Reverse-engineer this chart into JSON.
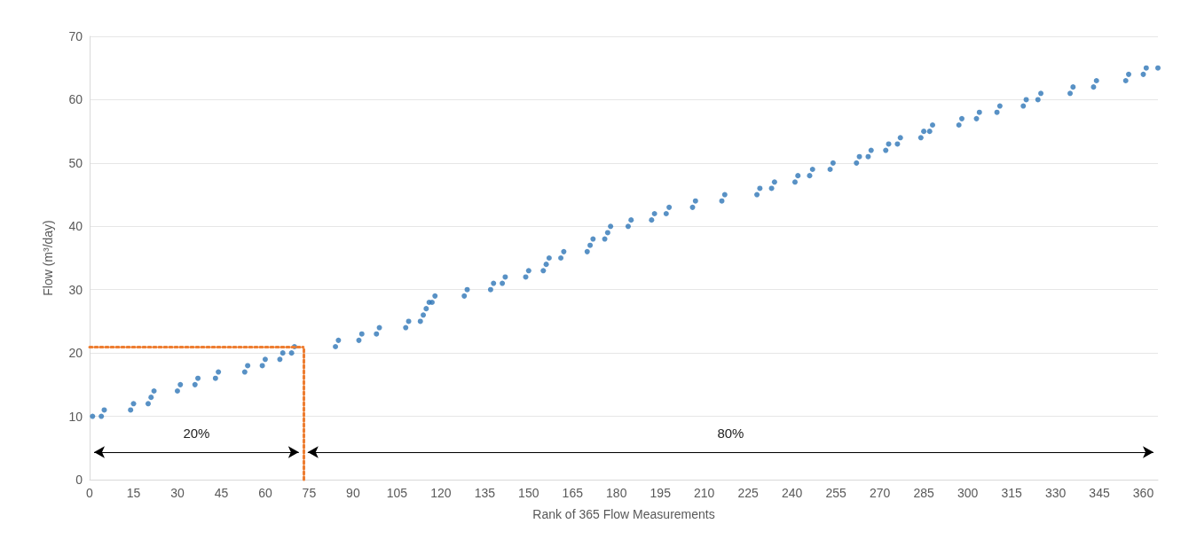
{
  "chart_data": {
    "type": "scatter",
    "xlabel": "Rank of 365 Flow Measurements",
    "ylabel": "Flow (m³/day)",
    "x": [
      1,
      4,
      5,
      14,
      15,
      20,
      21,
      22,
      30,
      31,
      36,
      37,
      43,
      44,
      53,
      54,
      59,
      60,
      65,
      66,
      69,
      70,
      84,
      85,
      92,
      93,
      98,
      99,
      108,
      109,
      113,
      114,
      115,
      116,
      117,
      118,
      128,
      129,
      137,
      138,
      141,
      142,
      149,
      150,
      155,
      156,
      157,
      161,
      162,
      170,
      171,
      172,
      176,
      177,
      178,
      184,
      185,
      192,
      193,
      197,
      198,
      206,
      207,
      216,
      217,
      228,
      229,
      233,
      234,
      241,
      242,
      246,
      247,
      253,
      254,
      262,
      263,
      266,
      267,
      272,
      273,
      276,
      277,
      284,
      285,
      287,
      288,
      297,
      298,
      303,
      304,
      310,
      311,
      319,
      320,
      324,
      325,
      335,
      336,
      343,
      344,
      354,
      355,
      360,
      361,
      365
    ],
    "values": [
      10,
      10,
      11,
      11,
      12,
      12,
      13,
      14,
      14,
      15,
      15,
      16,
      16,
      17,
      17,
      18,
      18,
      19,
      19,
      20,
      20,
      21,
      21,
      22,
      22,
      23,
      23,
      24,
      24,
      25,
      25,
      26,
      27,
      28,
      28,
      29,
      29,
      30,
      30,
      31,
      31,
      32,
      32,
      33,
      33,
      34,
      35,
      35,
      36,
      36,
      37,
      38,
      38,
      39,
      40,
      40,
      41,
      41,
      42,
      42,
      43,
      43,
      44,
      44,
      45,
      45,
      46,
      46,
      47,
      47,
      48,
      48,
      49,
      49,
      50,
      50,
      51,
      51,
      52,
      52,
      53,
      53,
      54,
      54,
      55,
      55,
      56,
      56,
      57,
      57,
      58,
      58,
      59,
      59,
      60,
      60,
      61,
      61,
      62,
      62,
      63,
      63,
      64,
      64,
      65,
      65
    ],
    "color": "#2e75b6",
    "marker": "circle",
    "xlim": [
      0,
      365
    ],
    "xticks": [
      0,
      15,
      30,
      45,
      60,
      75,
      90,
      105,
      120,
      135,
      150,
      165,
      180,
      195,
      210,
      225,
      240,
      255,
      270,
      285,
      300,
      315,
      330,
      345,
      360
    ],
    "ylim": [
      0,
      70
    ],
    "yticks": [
      0,
      10,
      20,
      30,
      40,
      50,
      60,
      70
    ],
    "grid": "y",
    "ref_lines": [
      {
        "axis": "y",
        "value": 21,
        "color": "#ed7d31",
        "line_style": "dotted"
      },
      {
        "axis": "x",
        "value": 73,
        "color": "#ed7d31",
        "line_style": "dotted"
      }
    ],
    "annotations": [
      "20%",
      "80%"
    ]
  }
}
